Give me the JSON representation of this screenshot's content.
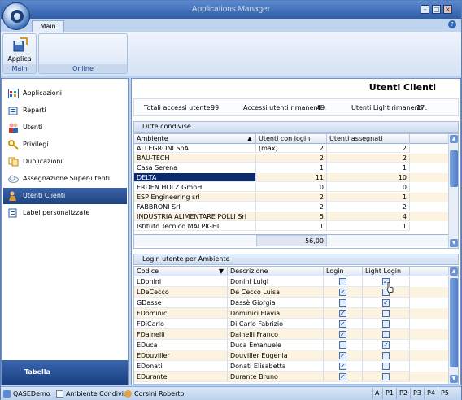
{
  "window": {
    "title": "Applications Manager"
  },
  "ribbon": {
    "tabs": [
      {
        "label": "Main"
      }
    ],
    "groups": [
      {
        "label": "Main",
        "button": "Applica"
      },
      {
        "label": "Online"
      }
    ]
  },
  "sidebar": {
    "items": [
      {
        "label": "Applicazioni",
        "icon": "applications-icon"
      },
      {
        "label": "Reparti",
        "icon": "departments-icon"
      },
      {
        "label": "Utenti",
        "icon": "users-icon"
      },
      {
        "label": "Privilegi",
        "icon": "privileges-icon"
      },
      {
        "label": "Duplicazioni",
        "icon": "duplicate-icon"
      },
      {
        "label": "Assegnazione Super-utenti Condivisi",
        "icon": "cloud-icon"
      },
      {
        "label": "Utenti Clienti",
        "icon": "client-users-icon"
      },
      {
        "label": "Label personalizzate",
        "icon": "label-icon"
      }
    ],
    "footer": "Tabella"
  },
  "main": {
    "title": "Utenti Clienti",
    "stats": [
      {
        "label": "Totali accessi utente :",
        "value": "99"
      },
      {
        "label": "Accessi utenti rimanenti :",
        "value": "49"
      },
      {
        "label": "Utenti Light rimanenti :",
        "value": "17"
      }
    ],
    "shared": {
      "title": "Ditte condivise",
      "columns": [
        "Ambiente",
        "Utenti con login (max)",
        "Utenti assegnati"
      ],
      "rows": [
        [
          "ALLEGRONI SpA",
          "2",
          "2"
        ],
        [
          "BAU-TECH",
          "2",
          "2"
        ],
        [
          "Casa Serena",
          "1",
          "1"
        ],
        [
          "DELTA",
          "11",
          "10"
        ],
        [
          "ERDEN HOLZ GmbH",
          "0",
          "0"
        ],
        [
          "ESP Engineering srl",
          "2",
          "1"
        ],
        [
          "FABBRONI Srl",
          "2",
          "2"
        ],
        [
          "INDUSTRIA ALIMENTARE POLLI Srl",
          "5",
          "4"
        ],
        [
          "Istituto Tecnico MALPIGHI",
          "1",
          "1"
        ]
      ],
      "total": "56,00"
    },
    "login": {
      "title": "Login utente per Ambiente",
      "columns": [
        "Codice",
        "Descrizione",
        "Login",
        "Light Login"
      ],
      "rows": [
        {
          "code": "LDonini",
          "desc": "Donini Luigi",
          "login": false,
          "light": true
        },
        {
          "code": "LDeCecco",
          "desc": "De Cecco Luisa",
          "login": true,
          "light": false
        },
        {
          "code": "GDasse",
          "desc": "Dassè Giorgia",
          "login": false,
          "light": true
        },
        {
          "code": "FDominici",
          "desc": "Dominici Flavia",
          "login": true,
          "light": false
        },
        {
          "code": "FDiCarlo",
          "desc": "Di Carlo Fabrizio",
          "login": true,
          "light": false
        },
        {
          "code": "FDainelli",
          "desc": "Dainelli Franco",
          "login": true,
          "light": false
        },
        {
          "code": "EDuca",
          "desc": "Duca Emanuele",
          "login": false,
          "light": true
        },
        {
          "code": "EDouviller",
          "desc": "Douviller Eugenia",
          "login": true,
          "light": false
        },
        {
          "code": "EDonati",
          "desc": "Donati Elisabetta",
          "login": true,
          "light": false
        },
        {
          "code": "EDurante",
          "desc": "Durante Bruno",
          "login": true,
          "light": false
        }
      ]
    }
  },
  "statusbar": {
    "items": [
      {
        "label": "QASEDemo",
        "icon": "database-icon"
      },
      {
        "label": "Ambiente Condiviso",
        "icon": "environment-icon"
      },
      {
        "label": "Corsini Roberto",
        "icon": "user-icon"
      }
    ],
    "keys": [
      "A",
      "P1",
      "P2",
      "P3",
      "P4",
      "P5"
    ]
  }
}
